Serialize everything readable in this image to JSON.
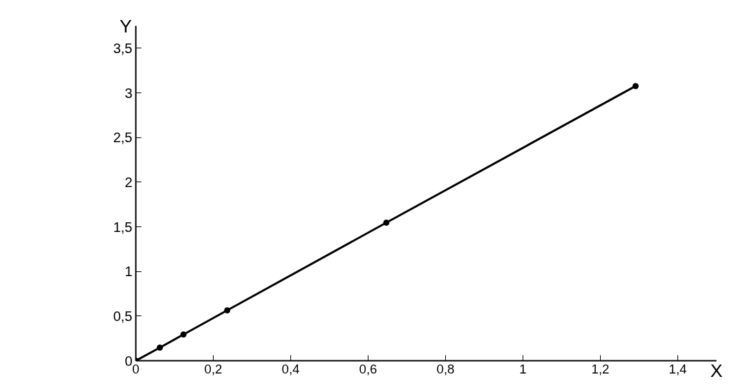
{
  "chart_data": {
    "type": "line",
    "xlabel": "X",
    "ylabel": "Y",
    "marker": "circle",
    "line_style": "solid",
    "grid": false,
    "x": [
      0,
      0.062,
      0.123,
      0.236,
      0.647,
      1.291
    ],
    "series": [
      {
        "color": "#000000",
        "values": [
          0,
          0.147,
          0.294,
          0.564,
          1.546,
          3.076
        ]
      }
    ],
    "xlim": [
      0,
      1.5
    ],
    "ylim": [
      0,
      3.75
    ],
    "xticks": [
      0,
      {
        "value": 0.2,
        "label": "0,2"
      },
      {
        "value": 0.4,
        "label": "0,4"
      },
      {
        "value": 0.6,
        "label": "0,6"
      },
      {
        "value": 0.8,
        "label": "0,8"
      },
      1,
      {
        "value": 1.2,
        "label": "1,2"
      },
      {
        "value": 1.4,
        "label": "1,4"
      }
    ],
    "yticks": [
      0,
      {
        "value": 0.5,
        "label": "0,5"
      },
      1,
      {
        "value": 1.5,
        "label": "1,5"
      },
      2,
      {
        "value": 2.5,
        "label": "2,5"
      },
      3,
      {
        "value": 3.5,
        "label": "3,5"
      }
    ]
  }
}
